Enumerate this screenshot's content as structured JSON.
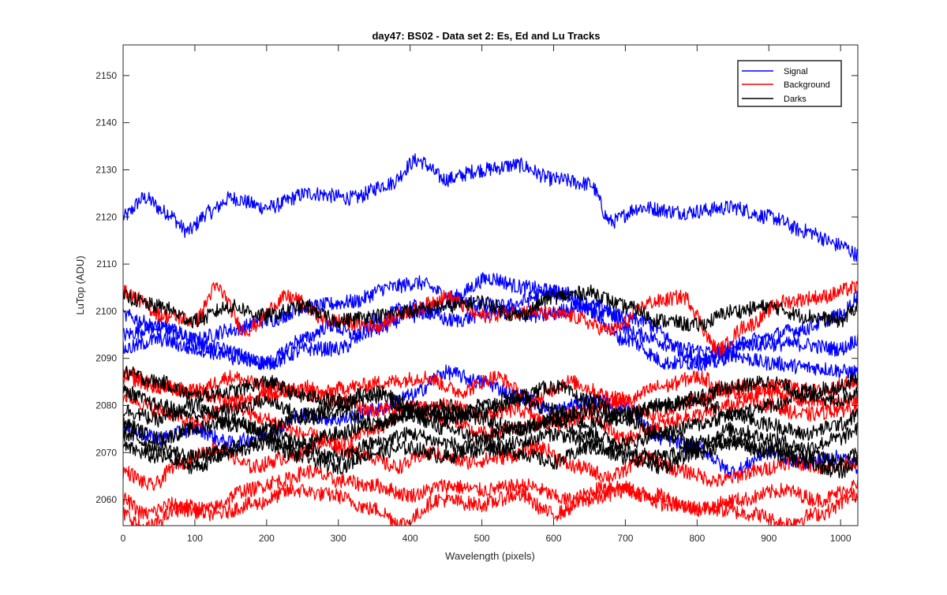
{
  "chart_data": {
    "type": "line",
    "title": "day47: BS02 - Data set 2: Es, Ed and Lu Tracks",
    "xlabel": "Wavelength (pixels)",
    "ylabel": "LuTop (ADU)",
    "xlim": [
      0,
      1024
    ],
    "ylim": [
      2054.5,
      2156.5
    ],
    "xticks": [
      0,
      100,
      200,
      300,
      400,
      500,
      600,
      700,
      800,
      900,
      1000
    ],
    "yticks": [
      2060,
      2070,
      2080,
      2090,
      2100,
      2110,
      2120,
      2130,
      2140,
      2150
    ],
    "grid": false,
    "legend_position": "top-right",
    "legend": [
      {
        "label": "Signal",
        "color": "#0000ff"
      },
      {
        "label": "Background",
        "color": "#ff0000"
      },
      {
        "label": "Darks",
        "color": "#000000"
      }
    ],
    "noise_amplitude": 1.6,
    "series": [
      {
        "group": "Signal",
        "color": "#0000ff",
        "x": [
          0,
          30,
          60,
          90,
          120,
          150,
          200,
          260,
          320,
          370,
          410,
          450,
          500,
          550,
          600,
          650,
          680,
          720,
          780,
          850,
          900,
          950,
          1000,
          1024
        ],
        "y": [
          2120,
          2124,
          2121,
          2117,
          2121,
          2124,
          2122,
          2125,
          2124,
          2127,
          2132,
          2128,
          2130,
          2131,
          2128,
          2127,
          2119,
          2122,
          2121,
          2122,
          2120,
          2117,
          2114,
          2112
        ]
      },
      {
        "group": "Signal",
        "color": "#0000ff",
        "x": [
          0,
          50,
          100,
          150,
          200,
          260,
          320,
          370,
          410,
          460,
          510,
          560,
          610,
          660,
          720,
          780,
          840,
          900,
          960,
          1024
        ],
        "y": [
          2095,
          2097,
          2094,
          2096,
          2098,
          2101,
          2102,
          2105,
          2106,
          2103,
          2107,
          2105,
          2104,
          2101,
          2095,
          2092,
          2091,
          2089,
          2088,
          2087
        ]
      },
      {
        "group": "Signal",
        "color": "#0000ff",
        "x": [
          0,
          60,
          130,
          200,
          260,
          300,
          350,
          400,
          460,
          530,
          600,
          660,
          720,
          800,
          870,
          940,
          1000,
          1024
        ],
        "y": [
          2099,
          2096,
          2092,
          2089,
          2092,
          2092,
          2096,
          2099,
          2102,
          2101,
          2104,
          2100,
          2098,
          2090,
          2093,
          2093,
          2092,
          2094
        ]
      },
      {
        "group": "Signal",
        "color": "#0000ff",
        "x": [
          0,
          50,
          100,
          160,
          200,
          250,
          290,
          320,
          350,
          400,
          460,
          520,
          580,
          640,
          700,
          760,
          820,
          880,
          940,
          1000,
          1024
        ],
        "y": [
          2092,
          2094,
          2092,
          2090,
          2089,
          2094,
          2097,
          2095,
          2098,
          2101,
          2098,
          2100,
          2099,
          2101,
          2094,
          2089,
          2089,
          2094,
          2096,
          2099,
          2103
        ]
      },
      {
        "group": "Signal",
        "color": "#0000ff",
        "x": [
          0,
          50,
          100,
          150,
          200,
          250,
          300,
          350,
          400,
          450,
          500,
          550,
          600,
          650,
          700,
          750,
          800,
          850,
          900,
          950,
          1000,
          1024
        ],
        "y": [
          2075,
          2073,
          2075,
          2072,
          2074,
          2078,
          2077,
          2079,
          2082,
          2087,
          2085,
          2082,
          2079,
          2081,
          2080,
          2073,
          2071,
          2066,
          2070,
          2068,
          2069,
          2067
        ]
      },
      {
        "group": "Background",
        "color": "#ff0000",
        "x": [
          0,
          60,
          100,
          130,
          170,
          230,
          290,
          350,
          400,
          450,
          500,
          560,
          620,
          680,
          740,
          780,
          830,
          870,
          920,
          970,
          1024
        ],
        "y": [
          2104,
          2099,
          2098,
          2105,
          2096,
          2103,
          2098,
          2097,
          2100,
          2103,
          2099,
          2100,
          2099,
          2096,
          2102,
          2103,
          2092,
          2097,
          2102,
          2103,
          2105
        ]
      },
      {
        "group": "Background",
        "color": "#ff0000",
        "x": [
          0,
          50,
          100,
          150,
          200,
          260,
          320,
          370,
          420,
          470,
          520,
          570,
          620,
          680,
          740,
          800,
          860,
          920,
          970,
          1024
        ],
        "y": [
          2086,
          2084,
          2083,
          2086,
          2084,
          2082,
          2084,
          2085,
          2086,
          2083,
          2086,
          2081,
          2085,
          2082,
          2078,
          2081,
          2084,
          2084,
          2083,
          2085
        ]
      },
      {
        "group": "Background",
        "color": "#ff0000",
        "x": [
          0,
          50,
          100,
          150,
          200,
          250,
          300,
          350,
          400,
          450,
          500,
          550,
          600,
          650,
          700,
          750,
          800,
          850,
          900,
          950,
          1000,
          1024
        ],
        "y": [
          2082,
          2079,
          2076,
          2080,
          2077,
          2074,
          2072,
          2075,
          2079,
          2080,
          2078,
          2079,
          2076,
          2078,
          2073,
          2076,
          2078,
          2080,
          2083,
          2081,
          2080,
          2082
        ]
      },
      {
        "group": "Background",
        "color": "#ff0000",
        "x": [
          0,
          40,
          80,
          130,
          180,
          230,
          280,
          330,
          380,
          430,
          480,
          530,
          580,
          630,
          680,
          730,
          780,
          830,
          880,
          930,
          980,
          1024
        ],
        "y": [
          2066,
          2063,
          2068,
          2071,
          2067,
          2069,
          2072,
          2070,
          2067,
          2070,
          2068,
          2069,
          2071,
          2067,
          2065,
          2069,
          2066,
          2064,
          2066,
          2068,
          2067,
          2068
        ]
      },
      {
        "group": "Background",
        "color": "#ff0000",
        "x": [
          0,
          30,
          70,
          120,
          170,
          220,
          260,
          300,
          350,
          400,
          450,
          500,
          560,
          620,
          680,
          740,
          800,
          860,
          920,
          970,
          1024
        ],
        "y": [
          2060,
          2057,
          2059,
          2058,
          2062,
          2064,
          2066,
          2064,
          2063,
          2061,
          2063,
          2062,
          2063,
          2060,
          2063,
          2061,
          2058,
          2060,
          2062,
          2060,
          2063
        ]
      },
      {
        "group": "Background",
        "color": "#ff0000",
        "x": [
          0,
          30,
          80,
          130,
          180,
          240,
          290,
          350,
          390,
          440,
          500,
          550,
          600,
          650,
          700,
          760,
          820,
          880,
          920,
          970,
          1024
        ],
        "y": [
          2057,
          2054,
          2058,
          2057,
          2059,
          2062,
          2061,
          2058,
          2055,
          2060,
          2059,
          2061,
          2057,
          2060,
          2062,
          2059,
          2058,
          2057,
          2055,
          2057,
          2061
        ]
      },
      {
        "group": "Background",
        "color": "#ff0000",
        "x": [
          0,
          50,
          100,
          150,
          200,
          250,
          300,
          350,
          400,
          450,
          500,
          550,
          600,
          650,
          700,
          750,
          800,
          850,
          900,
          950,
          1000,
          1024
        ],
        "y": [
          2087,
          2084,
          2083,
          2081,
          2082,
          2084,
          2081,
          2079,
          2080,
          2077,
          2074,
          2075,
          2077,
          2079,
          2081,
          2084,
          2086,
          2083,
          2080,
          2078,
          2079,
          2080
        ]
      },
      {
        "group": "Darks",
        "color": "#000000",
        "x": [
          0,
          50,
          100,
          150,
          200,
          250,
          300,
          350,
          400,
          450,
          500,
          550,
          600,
          650,
          700,
          750,
          800,
          850,
          900,
          950,
          1000,
          1024
        ],
        "y": [
          2103,
          2101,
          2098,
          2101,
          2099,
          2101,
          2098,
          2099,
          2100,
          2101,
          2102,
          2099,
          2103,
          2104,
          2101,
          2098,
          2097,
          2100,
          2101,
          2099,
          2098,
          2101
        ]
      },
      {
        "group": "Darks",
        "color": "#000000",
        "x": [
          0,
          50,
          100,
          150,
          200,
          250,
          300,
          350,
          400,
          450,
          500,
          550,
          600,
          650,
          700,
          750,
          800,
          850,
          900,
          950,
          1000,
          1024
        ],
        "y": [
          2087,
          2085,
          2082,
          2083,
          2085,
          2082,
          2081,
          2083,
          2080,
          2078,
          2080,
          2082,
          2084,
          2081,
          2078,
          2080,
          2082,
          2084,
          2085,
          2083,
          2084,
          2086
        ]
      },
      {
        "group": "Darks",
        "color": "#000000",
        "x": [
          0,
          50,
          100,
          150,
          200,
          250,
          300,
          350,
          400,
          450,
          500,
          550,
          600,
          650,
          700,
          750,
          800,
          850,
          900,
          950,
          1000,
          1024
        ],
        "y": [
          2083,
          2080,
          2078,
          2079,
          2081,
          2078,
          2080,
          2082,
          2079,
          2077,
          2079,
          2081,
          2079,
          2076,
          2078,
          2080,
          2081,
          2078,
          2080,
          2082,
          2081,
          2083
        ]
      },
      {
        "group": "Darks",
        "color": "#000000",
        "x": [
          0,
          50,
          100,
          150,
          200,
          250,
          300,
          350,
          400,
          450,
          500,
          550,
          600,
          650,
          700,
          750,
          800,
          850,
          900,
          950,
          1000,
          1024
        ],
        "y": [
          2079,
          2077,
          2080,
          2076,
          2075,
          2077,
          2079,
          2076,
          2078,
          2080,
          2077,
          2075,
          2077,
          2079,
          2077,
          2074,
          2076,
          2078,
          2076,
          2074,
          2076,
          2078
        ]
      },
      {
        "group": "Darks",
        "color": "#000000",
        "x": [
          0,
          50,
          100,
          150,
          200,
          250,
          300,
          350,
          400,
          450,
          500,
          550,
          600,
          650,
          700,
          750,
          800,
          850,
          900,
          950,
          1000,
          1024
        ],
        "y": [
          2076,
          2073,
          2075,
          2077,
          2074,
          2072,
          2074,
          2076,
          2078,
          2075,
          2073,
          2075,
          2077,
          2074,
          2072,
          2074,
          2072,
          2075,
          2073,
          2071,
          2073,
          2075
        ]
      },
      {
        "group": "Darks",
        "color": "#000000",
        "x": [
          0,
          50,
          100,
          150,
          200,
          250,
          300,
          350,
          400,
          450,
          500,
          550,
          600,
          650,
          700,
          750,
          800,
          850,
          900,
          950,
          1000,
          1024
        ],
        "y": [
          2074,
          2071,
          2069,
          2071,
          2073,
          2071,
          2069,
          2072,
          2074,
          2072,
          2070,
          2072,
          2074,
          2072,
          2070,
          2069,
          2071,
          2073,
          2071,
          2070,
          2068,
          2070
        ]
      },
      {
        "group": "Darks",
        "color": "#000000",
        "x": [
          0,
          50,
          100,
          150,
          200,
          250,
          300,
          350,
          400,
          450,
          500,
          550,
          600,
          650,
          700,
          750,
          800,
          850,
          900,
          950,
          1000,
          1024
        ],
        "y": [
          2071,
          2069,
          2067,
          2070,
          2072,
          2069,
          2067,
          2070,
          2071,
          2069,
          2072,
          2070,
          2068,
          2071,
          2069,
          2067,
          2070,
          2072,
          2070,
          2068,
          2066,
          2068
        ]
      }
    ]
  }
}
